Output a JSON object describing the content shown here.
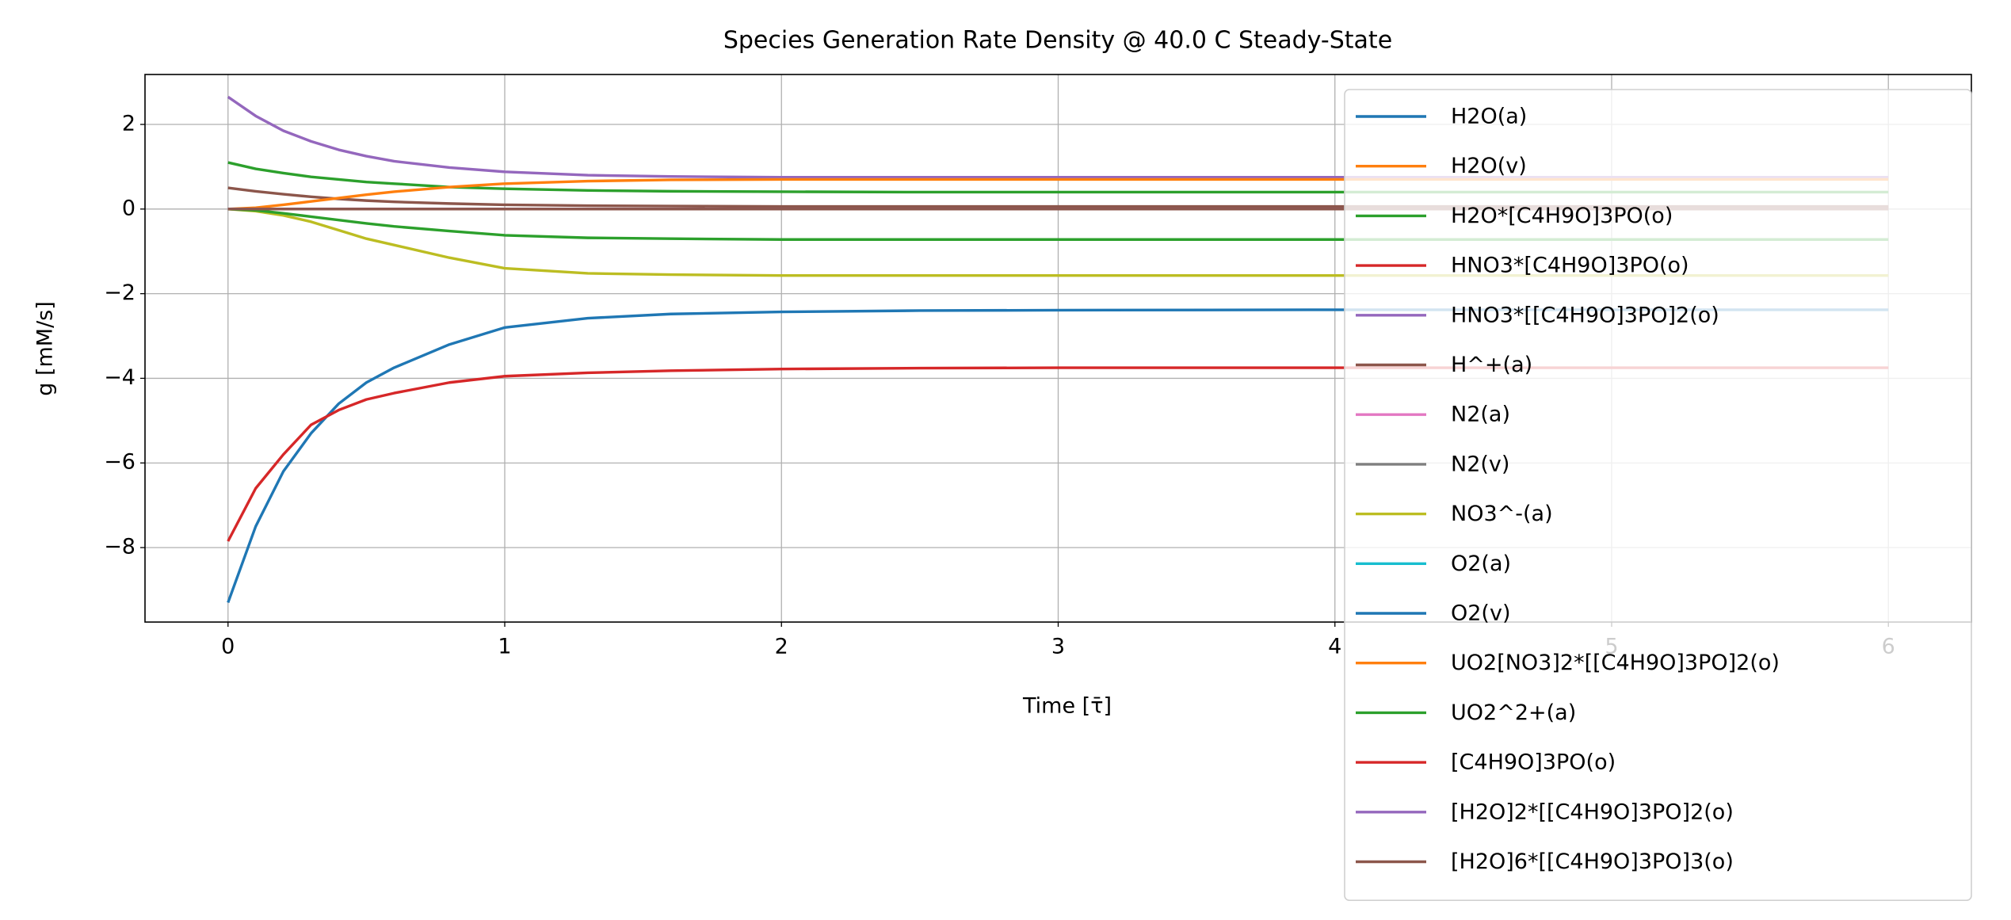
{
  "chart_data": {
    "type": "line",
    "title": "Species Generation Rate Density @ 40.0 C Steady-State",
    "xlabel": "Time [τ̄]",
    "ylabel": "g [mM/s]",
    "x": [
      0,
      0.1,
      0.2,
      0.3,
      0.4,
      0.5,
      0.6,
      0.8,
      1,
      1.3,
      1.6,
      2,
      2.5,
      3,
      4,
      5,
      6
    ],
    "xlim": [
      -0.3,
      6.3
    ],
    "xticks": [
      0,
      1,
      2,
      3,
      4,
      5,
      6
    ],
    "ylim": [
      -9.76,
      3.18
    ],
    "yticks": [
      {
        "value": -8,
        "label": "−8"
      },
      {
        "value": -6,
        "label": "−6"
      },
      {
        "value": -4,
        "label": "−4"
      },
      {
        "value": -2,
        "label": "−2"
      },
      0,
      2
    ],
    "grid": true,
    "legend": "upper right",
    "series": [
      {
        "name": "H2O(a)",
        "color": "#1f77b4",
        "values": [
          -9.3,
          -7.5,
          -6.2,
          -5.3,
          -4.6,
          -4.1,
          -3.75,
          -3.2,
          -2.8,
          -2.58,
          -2.48,
          -2.43,
          -2.4,
          -2.39,
          -2.38,
          -2.38,
          -2.38
        ]
      },
      {
        "name": "H2O(v)",
        "color": "#ff7f0e",
        "values": [
          0,
          0,
          0,
          0,
          0,
          0,
          0,
          0,
          0,
          0,
          0,
          0,
          0,
          0,
          0,
          0,
          0
        ]
      },
      {
        "name": "H2O*[C4H9O]3PO(o)",
        "color": "#2ca02c",
        "values": [
          1.1,
          0.95,
          0.85,
          0.76,
          0.7,
          0.64,
          0.6,
          0.52,
          0.48,
          0.44,
          0.42,
          0.41,
          0.4,
          0.4,
          0.4,
          0.4,
          0.4
        ]
      },
      {
        "name": "HNO3*[C4H9O]3PO(o)",
        "color": "#d62728",
        "values": [
          -7.85,
          -6.6,
          -5.8,
          -5.1,
          -4.75,
          -4.5,
          -4.35,
          -4.1,
          -3.95,
          -3.87,
          -3.82,
          -3.78,
          -3.76,
          -3.75,
          -3.75,
          -3.75,
          -3.75
        ]
      },
      {
        "name": "HNO3*[[C4H9O]3PO]2(o)",
        "color": "#9467bd",
        "values": [
          2.65,
          2.2,
          1.85,
          1.6,
          1.4,
          1.25,
          1.13,
          0.98,
          0.88,
          0.8,
          0.77,
          0.75,
          0.75,
          0.75,
          0.75,
          0.75,
          0.75
        ]
      },
      {
        "name": "H^+(a)",
        "color": "#8c564b",
        "values": [
          0.5,
          0.42,
          0.35,
          0.29,
          0.24,
          0.2,
          0.17,
          0.13,
          0.1,
          0.08,
          0.07,
          0.06,
          0.06,
          0.06,
          0.06,
          0.06,
          0.06
        ]
      },
      {
        "name": "N2(a)",
        "color": "#e377c2",
        "values": [
          0,
          0,
          0,
          0,
          0,
          0,
          0,
          0,
          0,
          0,
          0,
          0,
          0,
          0,
          0,
          0,
          0
        ]
      },
      {
        "name": "N2(v)",
        "color": "#7f7f7f",
        "values": [
          0,
          0,
          0,
          0,
          0,
          0,
          0,
          0,
          0,
          0,
          0,
          0,
          0,
          0,
          0,
          0,
          0
        ]
      },
      {
        "name": "NO3^-(a)",
        "color": "#bcbd22",
        "values": [
          0,
          -0.05,
          -0.15,
          -0.3,
          -0.5,
          -0.7,
          -0.85,
          -1.15,
          -1.4,
          -1.52,
          -1.55,
          -1.57,
          -1.57,
          -1.57,
          -1.57,
          -1.57,
          -1.57
        ]
      },
      {
        "name": "O2(a)",
        "color": "#17becf",
        "values": [
          0,
          0,
          0,
          0,
          0,
          0,
          0,
          0,
          0,
          0,
          0,
          0,
          0,
          0,
          0,
          0,
          0
        ]
      },
      {
        "name": "O2(v)",
        "color": "#1f77b4",
        "values": [
          0,
          0,
          0,
          0,
          0,
          0,
          0,
          0,
          0,
          0,
          0,
          0,
          0,
          0,
          0,
          0,
          0
        ]
      },
      {
        "name": "UO2[NO3]2*[[C4H9O]3PO]2(o)",
        "color": "#ff7f0e",
        "values": [
          0,
          0.03,
          0.1,
          0.18,
          0.26,
          0.34,
          0.41,
          0.52,
          0.6,
          0.66,
          0.69,
          0.7,
          0.7,
          0.7,
          0.7,
          0.7,
          0.7
        ]
      },
      {
        "name": "UO2^2+(a)",
        "color": "#2ca02c",
        "values": [
          0,
          -0.03,
          -0.1,
          -0.18,
          -0.26,
          -0.34,
          -0.41,
          -0.52,
          -0.62,
          -0.68,
          -0.7,
          -0.72,
          -0.72,
          -0.72,
          -0.72,
          -0.72,
          -0.72
        ]
      },
      {
        "name": "[C4H9O]3PO(o)",
        "color": "#d62728",
        "values": [
          0,
          0,
          0,
          0,
          0,
          0,
          0,
          0,
          0,
          0,
          0,
          0,
          0,
          0,
          0,
          0,
          0
        ]
      },
      {
        "name": "[H2O]2*[[C4H9O]3PO]2(o)",
        "color": "#9467bd",
        "values": [
          0,
          0,
          0,
          0,
          0,
          0,
          0,
          0,
          0,
          0,
          0,
          0,
          0,
          0,
          0,
          0,
          0
        ]
      },
      {
        "name": "[H2O]6*[[C4H9O]3PO]3(o)",
        "color": "#8c564b",
        "values": [
          0,
          0,
          0,
          0,
          0,
          0,
          0,
          0,
          0,
          0,
          0,
          0,
          0,
          0,
          0,
          0,
          0
        ]
      }
    ]
  }
}
